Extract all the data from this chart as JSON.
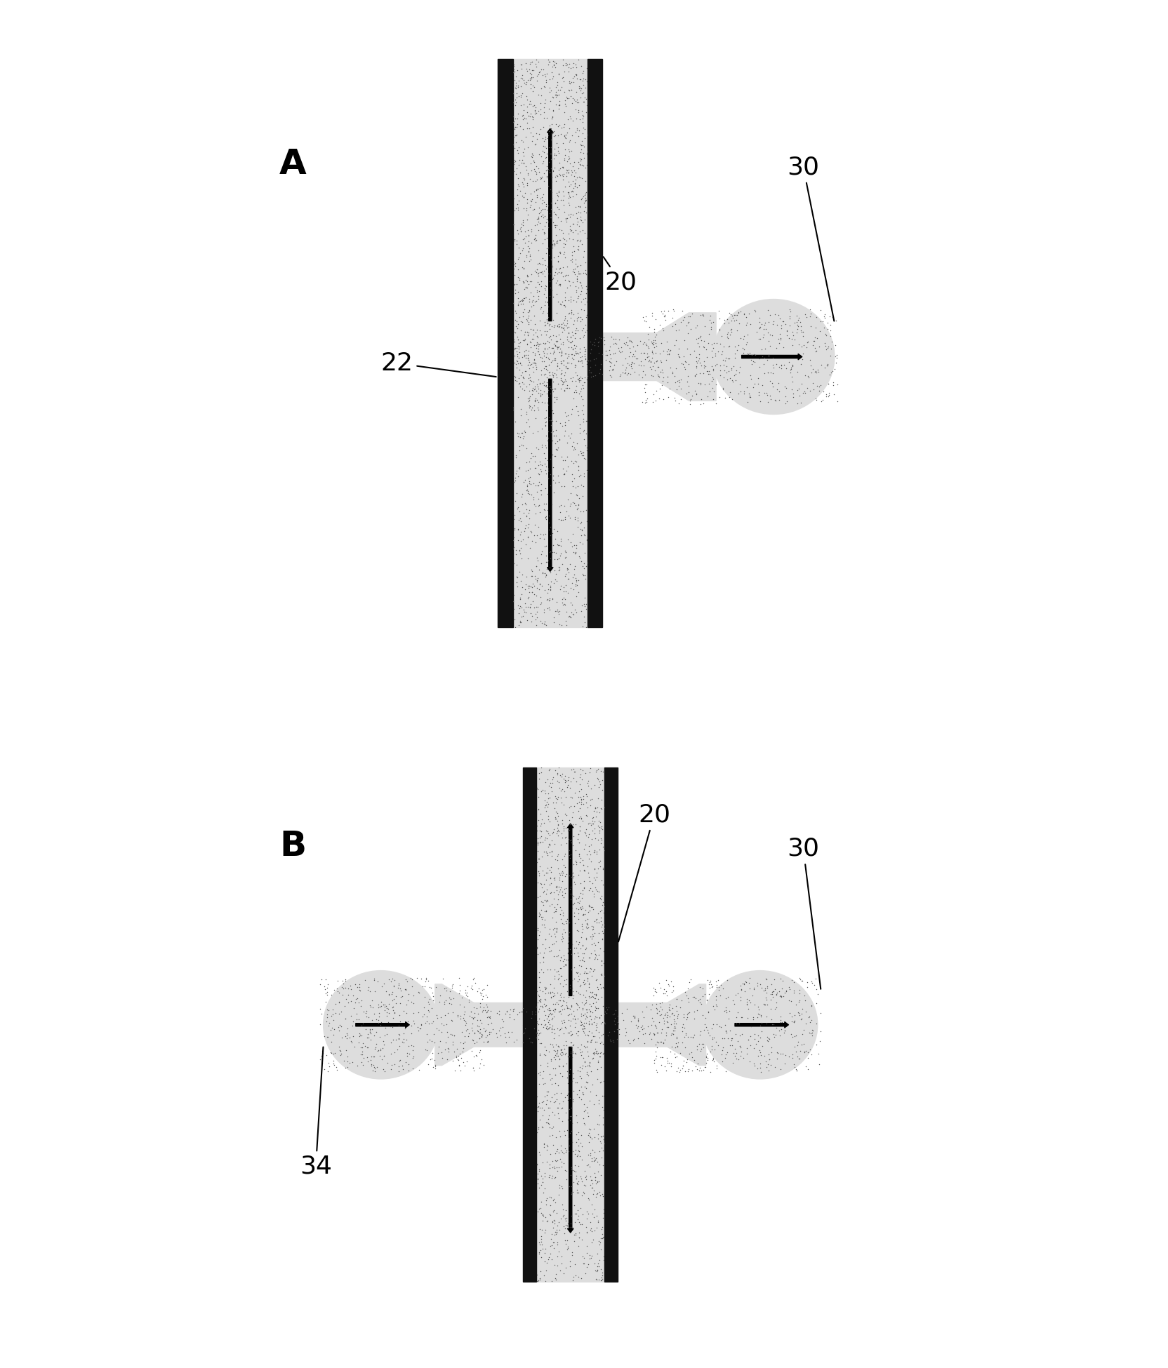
{
  "bg_color": "#ffffff",
  "speckle_color": "#888888",
  "black_color": "#000000",
  "channel_wall_color": "#111111",
  "fluid_color": "#cccccc",
  "label_A": "A",
  "label_B": "B",
  "label_20": "20",
  "label_22": "22",
  "label_30": "30",
  "label_34": "34",
  "font_size_label": 26,
  "font_size_panel": 32,
  "figsize": [
    16.64,
    19.5
  ],
  "dpi": 100
}
